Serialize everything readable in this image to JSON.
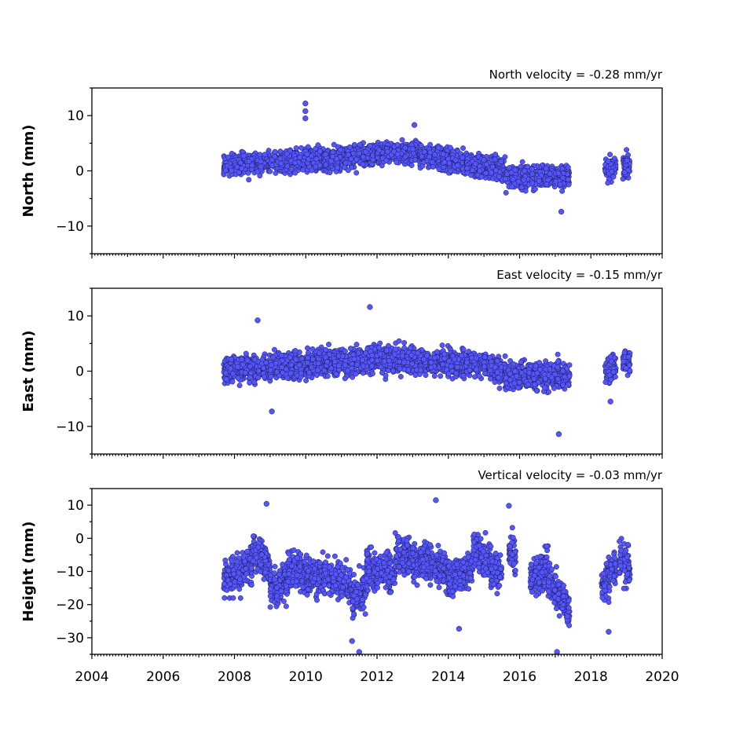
{
  "chart_data": [
    {
      "type": "scatter",
      "annotation": "North velocity = -0.28 mm/yr",
      "ylabel": "North (mm)",
      "xlim": [
        2004,
        2020
      ],
      "ylim": [
        -15,
        15
      ],
      "yticks": [
        10,
        0,
        -10
      ],
      "ytick_labels": [
        "10",
        "0",
        "−10"
      ],
      "segments": [
        {
          "x": [
            2007.7,
            2009.0
          ],
          "y": [
            1.0,
            1.6
          ]
        },
        {
          "x": [
            2009.0,
            2010.5
          ],
          "y": [
            1.6,
            2.2
          ]
        },
        {
          "x": [
            2010.5,
            2012.0
          ],
          "y": [
            2.2,
            3.0
          ]
        },
        {
          "x": [
            2012.0,
            2013.2
          ],
          "y": [
            3.0,
            3.6
          ]
        },
        {
          "x": [
            2013.2,
            2014.5
          ],
          "y": [
            3.0,
            1.5
          ]
        },
        {
          "x": [
            2014.5,
            2015.6
          ],
          "y": [
            1.5,
            0.2
          ]
        },
        {
          "x": [
            2015.6,
            2017.4
          ],
          "y": [
            -1.2,
            -0.8
          ]
        },
        {
          "x": [
            2018.4,
            2018.7
          ],
          "y": [
            0.0,
            0.5
          ]
        },
        {
          "x": [
            2018.9,
            2019.1
          ],
          "y": [
            0.6,
            1.0
          ]
        }
      ],
      "outliers": [
        {
          "x": 2009.99,
          "y": 12.2
        },
        {
          "x": 2009.99,
          "y": 10.8
        },
        {
          "x": 2009.99,
          "y": 9.5
        },
        {
          "x": 2013.05,
          "y": 8.3
        },
        {
          "x": 2017.17,
          "y": -7.4
        }
      ]
    },
    {
      "type": "scatter",
      "annotation": "East velocity = -0.15 mm/yr",
      "ylabel": "East (mm)",
      "xlim": [
        2004,
        2020
      ],
      "ylim": [
        -15,
        15
      ],
      "yticks": [
        10,
        0,
        -10
      ],
      "ytick_labels": [
        "10",
        "0",
        "−10"
      ],
      "segments": [
        {
          "x": [
            2007.7,
            2009.0
          ],
          "y": [
            0.3,
            0.8
          ]
        },
        {
          "x": [
            2009.0,
            2010.5
          ],
          "y": [
            0.8,
            1.5
          ]
        },
        {
          "x": [
            2010.5,
            2012.0
          ],
          "y": [
            1.5,
            2.2
          ]
        },
        {
          "x": [
            2012.0,
            2013.5
          ],
          "y": [
            2.2,
            1.8
          ]
        },
        {
          "x": [
            2013.5,
            2015.0
          ],
          "y": [
            1.8,
            1.2
          ]
        },
        {
          "x": [
            2015.0,
            2015.6
          ],
          "y": [
            1.0,
            0.0
          ]
        },
        {
          "x": [
            2015.6,
            2017.4
          ],
          "y": [
            -1.0,
            -0.8
          ]
        },
        {
          "x": [
            2018.4,
            2018.7
          ],
          "y": [
            0.0,
            1.0
          ]
        },
        {
          "x": [
            2018.9,
            2019.1
          ],
          "y": [
            1.5,
            2.0
          ]
        }
      ],
      "outliers": [
        {
          "x": 2008.65,
          "y": 9.2
        },
        {
          "x": 2011.8,
          "y": 11.6
        },
        {
          "x": 2009.05,
          "y": -7.3
        },
        {
          "x": 2017.1,
          "y": -11.4
        },
        {
          "x": 2018.55,
          "y": -5.5
        }
      ]
    },
    {
      "type": "scatter",
      "annotation": "Vertical velocity = -0.03 mm/yr",
      "ylabel": "Height (mm)",
      "xlim": [
        2004,
        2020
      ],
      "ylim": [
        -35,
        15
      ],
      "yticks": [
        10,
        0,
        -10,
        -20,
        -30
      ],
      "ytick_labels": [
        "10",
        "0",
        "−10",
        "−20",
        "−30"
      ],
      "segments": [
        {
          "x": [
            2007.7,
            2008.5
          ],
          "y": [
            -12.0,
            -8.0
          ]
        },
        {
          "x": [
            2008.5,
            2009.0
          ],
          "y": [
            -4.0,
            -9.0
          ]
        },
        {
          "x": [
            2009.0,
            2009.5
          ],
          "y": [
            -16.0,
            -12.0
          ]
        },
        {
          "x": [
            2009.5,
            2010.5
          ],
          "y": [
            -9.0,
            -12.0
          ]
        },
        {
          "x": [
            2010.5,
            2011.3
          ],
          "y": [
            -11.0,
            -14.0
          ]
        },
        {
          "x": [
            2011.3,
            2011.7
          ],
          "y": [
            -19.0,
            -15.0
          ]
        },
        {
          "x": [
            2011.7,
            2012.5
          ],
          "y": [
            -9.0,
            -11.0
          ]
        },
        {
          "x": [
            2012.5,
            2013.2
          ],
          "y": [
            -4.0,
            -8.0
          ]
        },
        {
          "x": [
            2013.2,
            2014.0
          ],
          "y": [
            -6.0,
            -10.0
          ]
        },
        {
          "x": [
            2014.0,
            2014.7
          ],
          "y": [
            -13.0,
            -9.0
          ]
        },
        {
          "x": [
            2014.7,
            2015.2
          ],
          "y": [
            -3.0,
            -7.0
          ]
        },
        {
          "x": [
            2015.2,
            2015.5
          ],
          "y": [
            -10.0,
            -10.0
          ]
        },
        {
          "x": [
            2015.7,
            2015.9
          ],
          "y": [
            -4.0,
            -6.0
          ]
        },
        {
          "x": [
            2016.3,
            2016.8
          ],
          "y": [
            -13.0,
            -8.0
          ]
        },
        {
          "x": [
            2016.8,
            2017.4
          ],
          "y": [
            -12.0,
            -22.0
          ]
        },
        {
          "x": [
            2018.3,
            2018.7
          ],
          "y": [
            -14.0,
            -9.0
          ]
        },
        {
          "x": [
            2018.8,
            2019.1
          ],
          "y": [
            -6.0,
            -10.0
          ]
        }
      ],
      "outliers": [
        {
          "x": 2008.9,
          "y": 10.4
        },
        {
          "x": 2013.65,
          "y": 11.5
        },
        {
          "x": 2015.7,
          "y": 9.8
        },
        {
          "x": 2011.5,
          "y": -34.3
        },
        {
          "x": 2017.05,
          "y": -34.3
        },
        {
          "x": 2018.5,
          "y": -28.2
        },
        {
          "x": 2014.3,
          "y": -27.3
        },
        {
          "x": 2011.3,
          "y": -31.0
        }
      ]
    }
  ],
  "xticks": [
    2004,
    2006,
    2008,
    2010,
    2012,
    2014,
    2016,
    2018,
    2020
  ],
  "xtick_labels": [
    "2004",
    "2006",
    "2008",
    "2010",
    "2012",
    "2014",
    "2016",
    "2018",
    "2020"
  ]
}
